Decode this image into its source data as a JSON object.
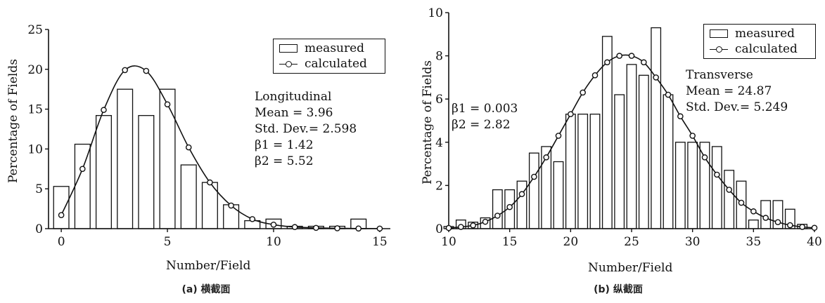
{
  "chart_data": [
    {
      "type": "bar",
      "caption": "(a) 横截面",
      "xlabel": "Number/Field",
      "ylabel": "Percentage of Fields",
      "xlim": [
        -0.6,
        15.5
      ],
      "ylim": [
        0,
        25
      ],
      "xticks": [
        0,
        5,
        10,
        15
      ],
      "yticks": [
        0,
        5,
        10,
        15,
        20,
        25
      ],
      "legend": {
        "position": "top-right",
        "entries": [
          "measured",
          "calculated"
        ]
      },
      "annotations": [
        "Longitudinal",
        "Mean = 3.96",
        "Std. Dev.= 2.598",
        "β1 = 1.42",
        "β2 = 5.52"
      ],
      "series": [
        {
          "name": "measured",
          "kind": "bar",
          "x": [
            0,
            1,
            2,
            3,
            4,
            5,
            6,
            7,
            8,
            9,
            10,
            11,
            12,
            13,
            14
          ],
          "values": [
            5.3,
            10.6,
            14.2,
            17.5,
            14.2,
            17.5,
            8.0,
            5.8,
            3.0,
            1.0,
            1.2,
            0.3,
            0.3,
            0.3,
            1.2
          ]
        },
        {
          "name": "calculated",
          "kind": "line",
          "x": [
            0,
            1,
            2,
            3,
            4,
            5,
            6,
            7,
            8,
            9,
            10,
            11,
            12,
            13,
            14,
            15
          ],
          "values": [
            1.7,
            7.5,
            14.9,
            19.9,
            19.8,
            15.6,
            10.2,
            5.8,
            2.9,
            1.2,
            0.5,
            0.2,
            0.1,
            0.05,
            0.02,
            0.01
          ]
        }
      ]
    },
    {
      "type": "bar",
      "caption": "(b) 纵截面",
      "xlabel": "Number/Field",
      "ylabel": "Percentage of Fields",
      "xlim": [
        10,
        40
      ],
      "ylim": [
        0,
        10
      ],
      "xticks": [
        10,
        15,
        20,
        25,
        30,
        35,
        40
      ],
      "yticks": [
        0,
        2,
        4,
        6,
        8,
        10
      ],
      "legend": {
        "position": "top-right",
        "entries": [
          "measured",
          "calculated"
        ]
      },
      "annotations": [
        "Transverse",
        "Mean = 24.87",
        "Std. Dev.= 5.249",
        "β1 = 0.003",
        "β2 = 2.82"
      ],
      "series": [
        {
          "name": "measured",
          "kind": "bar",
          "x": [
            10,
            11,
            12,
            13,
            14,
            15,
            16,
            17,
            18,
            19,
            20,
            21,
            22,
            23,
            24,
            25,
            26,
            27,
            28,
            29,
            30,
            31,
            32,
            33,
            34,
            35,
            36,
            37,
            38,
            39
          ],
          "values": [
            0.1,
            0.4,
            0.3,
            0.5,
            1.8,
            1.8,
            2.2,
            3.5,
            3.8,
            3.1,
            5.3,
            5.3,
            5.3,
            8.9,
            6.2,
            7.6,
            7.1,
            9.3,
            6.2,
            4.0,
            4.0,
            4.0,
            3.8,
            2.7,
            2.2,
            0.4,
            1.3,
            1.3,
            0.9,
            0.2
          ]
        },
        {
          "name": "calculated",
          "kind": "line",
          "x": [
            10,
            11,
            12,
            13,
            14,
            15,
            16,
            17,
            18,
            19,
            20,
            21,
            22,
            23,
            24,
            25,
            26,
            27,
            28,
            29,
            30,
            31,
            32,
            33,
            34,
            35,
            36,
            37,
            38,
            39,
            40
          ],
          "values": [
            0.03,
            0.08,
            0.15,
            0.32,
            0.6,
            1.0,
            1.6,
            2.4,
            3.3,
            4.3,
            5.3,
            6.3,
            7.1,
            7.7,
            8.0,
            8.0,
            7.7,
            7.0,
            6.2,
            5.2,
            4.3,
            3.3,
            2.5,
            1.8,
            1.2,
            0.8,
            0.5,
            0.3,
            0.16,
            0.08,
            0.04
          ]
        }
      ]
    }
  ]
}
